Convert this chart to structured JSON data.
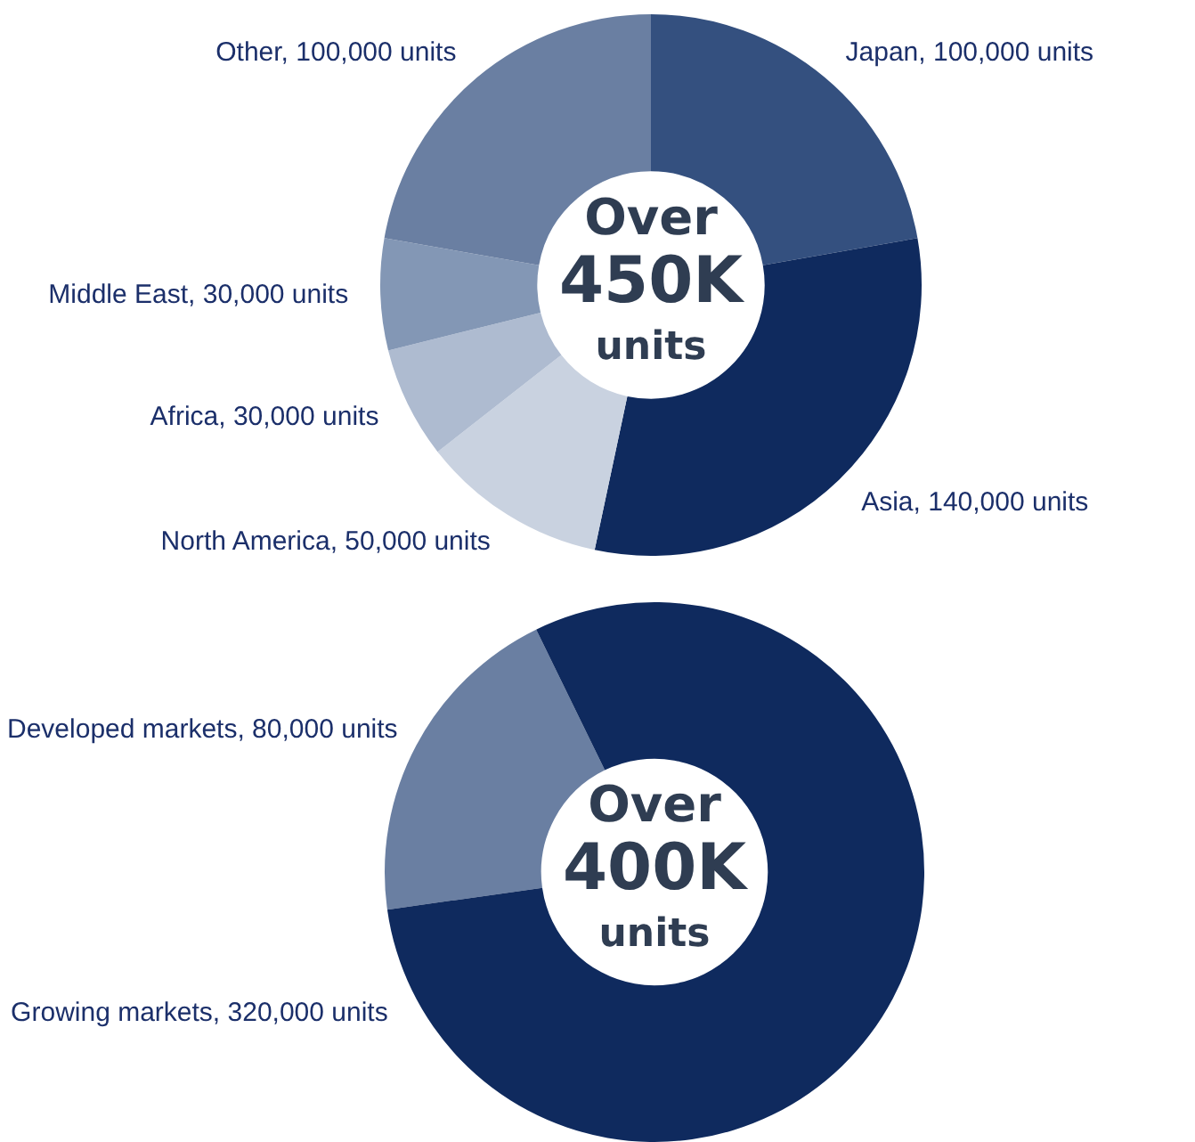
{
  "chart_data": [
    {
      "type": "donut",
      "categories": [
        "Japan",
        "Asia",
        "North America",
        "Africa",
        "Middle East",
        "Other"
      ],
      "values": [
        100000,
        140000,
        50000,
        30000,
        30000,
        100000
      ],
      "colors": [
        "#34507f",
        "#0f2a5e",
        "#c9d2e0",
        "#aebbd0",
        "#8397b5",
        "#6a7fa2"
      ],
      "value_labels": [
        "100,000 units",
        "140,000 units",
        "50,000 units",
        "30,000 units",
        "30,000 units",
        "100,000 units"
      ],
      "annotations": [
        "Over",
        "450K",
        "units"
      ],
      "legend": false
    },
    {
      "type": "donut",
      "categories": [
        "Developed markets",
        "Growing markets"
      ],
      "values": [
        80000,
        320000
      ],
      "colors": [
        "#6a7fa2",
        "#0f2a5e"
      ],
      "value_labels": [
        "80,000 units",
        "320,000 units"
      ],
      "annotations": [
        "Over",
        "400K",
        "units"
      ],
      "legend": false
    }
  ]
}
